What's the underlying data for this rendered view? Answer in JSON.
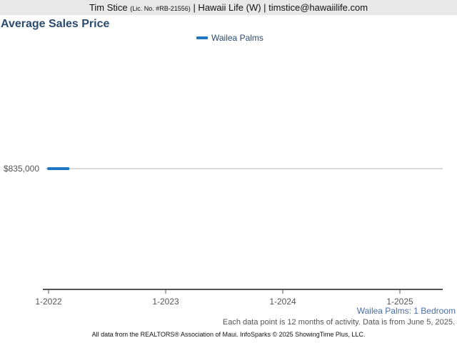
{
  "header": {
    "agent_name": "Tim Stice",
    "license": "(Lic. No. #RB-21556)",
    "brokerage_contact": "| Hawaii Life (W) | timstice@hawaiilife.com"
  },
  "chart_data": {
    "type": "line",
    "title": "Average Sales Price",
    "xlabel": "",
    "ylabel": "",
    "x_ticks": [
      "1-2022",
      "1-2023",
      "1-2024",
      "1-2025"
    ],
    "y_ticks": [
      {
        "value": 835000,
        "label": "$835,000"
      }
    ],
    "series": [
      {
        "name": "Wailea Palms",
        "color": "#1f77c4",
        "points": [
          {
            "x": "2022-01",
            "y": 835000
          },
          {
            "x": "2022-03",
            "y": 835000
          }
        ]
      }
    ],
    "legend_position": "top-center",
    "grid": "horizontal"
  },
  "labels": {
    "subtitle": "Wailea Palms: 1 Bedroom",
    "note": "Each data point is 12 months of activity. Data is from June 5, 2025.",
    "footer": "All data from the REALTORS® Association of Maui. InfoSparks © 2025 ShowingTime Plus, LLC."
  }
}
